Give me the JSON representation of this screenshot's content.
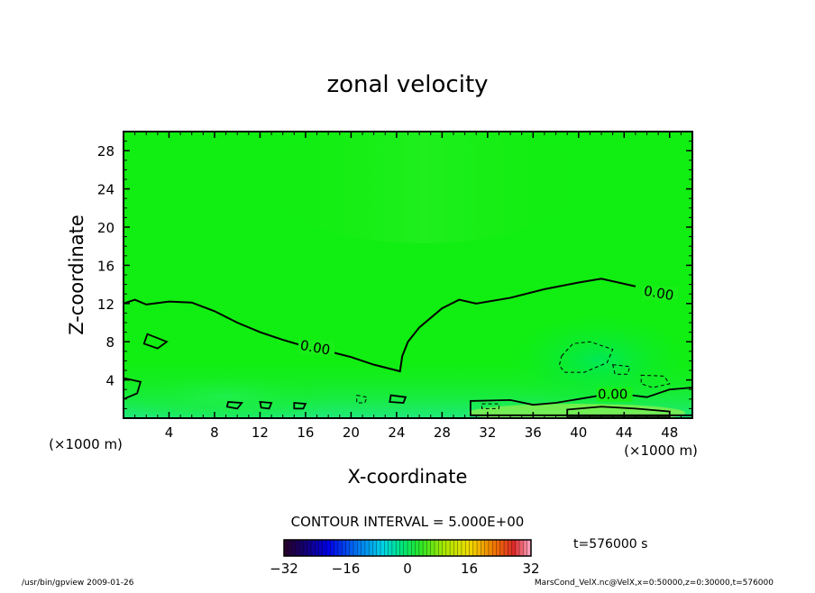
{
  "chart_data": {
    "type": "heatmap",
    "title": "zonal velocity",
    "xlabel": "X-coordinate",
    "ylabel": "Z-coordinate",
    "x_unit": "(×1000 m)",
    "y_unit": "(×1000 m)",
    "xlim": [
      0,
      50
    ],
    "ylim": [
      0,
      30
    ],
    "x_ticks": [
      4,
      8,
      12,
      16,
      20,
      24,
      28,
      32,
      36,
      40,
      44,
      48
    ],
    "y_ticks": [
      4,
      8,
      12,
      16,
      20,
      24,
      28
    ],
    "contour_interval_label": "CONTOUR INTERVAL = 5.000E+00",
    "contour_labels": [
      {
        "text": "0.00",
        "x": 16.8,
        "z": 7.1
      },
      {
        "text": "0.00",
        "x": 47.0,
        "z": 12.8
      },
      {
        "text": "0.00",
        "x": 43.0,
        "z": 2.2
      }
    ],
    "zero_contour": [
      [
        0,
        12.0
      ],
      [
        1.0,
        12.4
      ],
      [
        2.0,
        11.9
      ],
      [
        4.0,
        12.2
      ],
      [
        6.0,
        12.1
      ],
      [
        8.0,
        11.2
      ],
      [
        10.0,
        10.0
      ],
      [
        12.0,
        9.0
      ],
      [
        14.0,
        8.2
      ],
      [
        16.0,
        7.5
      ],
      [
        18.0,
        7.0
      ],
      [
        20.0,
        6.4
      ],
      [
        22.0,
        5.6
      ],
      [
        24.0,
        5.0
      ],
      [
        24.3,
        4.9
      ],
      [
        24.5,
        6.5
      ],
      [
        25.0,
        8.0
      ],
      [
        26.0,
        9.5
      ],
      [
        28.0,
        11.5
      ],
      [
        29.5,
        12.4
      ],
      [
        31.0,
        12.0
      ],
      [
        34.0,
        12.6
      ],
      [
        37.0,
        13.5
      ],
      [
        40.0,
        14.2
      ],
      [
        42.0,
        14.6
      ],
      [
        45.0,
        13.8
      ]
    ],
    "colorbar": {
      "min": -32,
      "max": 32,
      "ticks": [
        "−32",
        "−16",
        "0",
        "16",
        "32"
      ],
      "tick_values": [
        -32,
        -16,
        0,
        16,
        32
      ]
    },
    "time_label": "t=576000 s"
  },
  "footer": {
    "left": "/usr/bin/gpview   2009-01-26",
    "right": "MarsCond_VelX.nc@VelX,x=0:50000,z=0:30000,t=576000"
  },
  "colors": {
    "field_green": "#11ee11",
    "contour": "#000000"
  }
}
